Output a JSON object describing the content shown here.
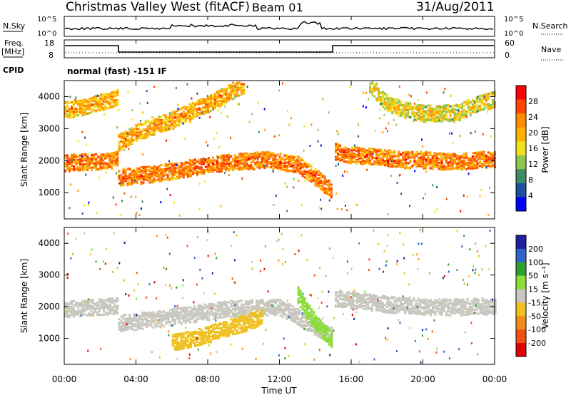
{
  "header": {
    "title": "Christmas Valley West (fitACF)",
    "beam": "Beam 01",
    "date": "31/Aug/2011"
  },
  "status_panels": {
    "nsky_label": "N.Sky",
    "nsky_ticks": [
      "10^5",
      "10^0"
    ],
    "nsearch_label": "N.Search",
    "nsearch_ticks": [
      "10^5",
      "10^0"
    ],
    "freq_label": "Freq.",
    "freq_unit": "[MHz]",
    "freq_ticks": [
      "18",
      "8"
    ],
    "nave_label": "Nave",
    "nave_ticks": [
      "60",
      "0"
    ],
    "cpid_label": "CPID",
    "cpid_text": "normal (fast) -151 IF"
  },
  "power_panel": {
    "ylabel": "Slant Range [km]",
    "colorbar_label": "Power [dB]",
    "colorbar_ticks": [
      "28",
      "24",
      "20",
      "16",
      "12",
      "8",
      "4"
    ]
  },
  "velocity_panel": {
    "ylabel": "Slant Range [km]",
    "colorbar_label": "Velocity [m s⁻¹]",
    "colorbar_ticks": [
      "200",
      "100",
      "50",
      "15",
      "-15",
      "-50",
      "-100",
      "-200"
    ]
  },
  "xaxis": {
    "label": "Time UT",
    "ticks": [
      "00:00",
      "04:00",
      "08:00",
      "12:00",
      "16:00",
      "20:00",
      "00:00"
    ]
  },
  "colors": {
    "power_scale": [
      "#ff0000",
      "#ff4500",
      "#ff8c00",
      "#ffb000",
      "#f0e020",
      "#8cc850",
      "#3c8c64",
      "#1e50a0",
      "#0000ff"
    ],
    "velocity_scale": [
      "#1f1fa0",
      "#2e64c8",
      "#2ea02e",
      "#8cdc3c",
      "#c8c8c0",
      "#f0c020",
      "#f08c1e",
      "#f05014",
      "#e00000"
    ]
  },
  "chart_data": [
    {
      "type": "heatmap",
      "title": "Christmas Valley West (fitACF)",
      "xlabel": "Time UT",
      "ylabel": "Slant Range [km]",
      "xlim": [
        "00:00",
        "24:00"
      ],
      "ylim": [
        180,
        4500
      ],
      "colorbar": "Power [dB]",
      "clim": [
        0,
        32
      ],
      "series": [
        {
          "x": [
            "00:00",
            "01:00",
            "02:00",
            "02:55",
            "03:00",
            "04:00",
            "05:00",
            "06:00",
            "07:00",
            "08:00",
            "09:00",
            "10:00",
            "11:00",
            "12:00",
            "13:00",
            "14:00",
            "14:55"
          ],
          "y": [
            1950,
            1980,
            2000,
            2050,
            1500,
            1550,
            1620,
            1700,
            1800,
            1900,
            1950,
            2000,
            2050,
            2000,
            1900,
            1500,
            1100
          ],
          "value": 26
        },
        {
          "x": [
            "00:00",
            "01:00",
            "02:00",
            "02:55",
            "03:00",
            "04:00",
            "05:00",
            "06:00",
            "07:00",
            "08:00",
            "09:00",
            "10:00"
          ],
          "y": [
            3600,
            3700,
            3850,
            4000,
            2600,
            2900,
            3100,
            3300,
            3550,
            3800,
            4100,
            4400
          ],
          "value": 22
        },
        {
          "x": [
            "15:05",
            "16:00",
            "17:00",
            "18:00",
            "19:00",
            "20:00",
            "21:00",
            "22:00",
            "23:00",
            "24:00"
          ],
          "y": [
            2300,
            2200,
            2150,
            2100,
            2050,
            2050,
            2000,
            2000,
            2050,
            2050
          ],
          "value": 26
        },
        {
          "x": [
            "17:00",
            "18:00",
            "19:00",
            "20:00",
            "21:00",
            "22:00",
            "23:00",
            "24:00"
          ],
          "y": [
            4400,
            3800,
            3600,
            3500,
            3500,
            3550,
            3800,
            3950
          ],
          "value": 18
        }
      ]
    },
    {
      "type": "heatmap",
      "title": "",
      "xlabel": "Time UT",
      "ylabel": "Slant Range [km]",
      "xlim": [
        "00:00",
        "24:00"
      ],
      "ylim": [
        180,
        4500
      ],
      "colorbar": "Velocity [m s⁻¹]",
      "clim": [
        -200,
        200
      ],
      "series": [
        {
          "x": [
            "00:00",
            "02:55",
            "03:00",
            "06:00",
            "09:00",
            "12:00",
            "14:55"
          ],
          "y": [
            1950,
            2050,
            1500,
            1700,
            1950,
            2000,
            1100
          ],
          "value": 0
        },
        {
          "x": [
            "06:00",
            "07:00",
            "08:00",
            "09:00",
            "10:00",
            "11:00"
          ],
          "y": [
            900,
            1000,
            1150,
            1350,
            1500,
            1700
          ],
          "value": -50
        },
        {
          "x": [
            "13:00",
            "13:30",
            "14:00",
            "14:30",
            "14:55"
          ],
          "y": [
            2400,
            1900,
            1500,
            1200,
            1000
          ],
          "value": 60
        },
        {
          "x": [
            "15:05",
            "18:00",
            "21:00",
            "24:00"
          ],
          "y": [
            2300,
            2100,
            2000,
            2050
          ],
          "value": 0
        }
      ]
    }
  ]
}
